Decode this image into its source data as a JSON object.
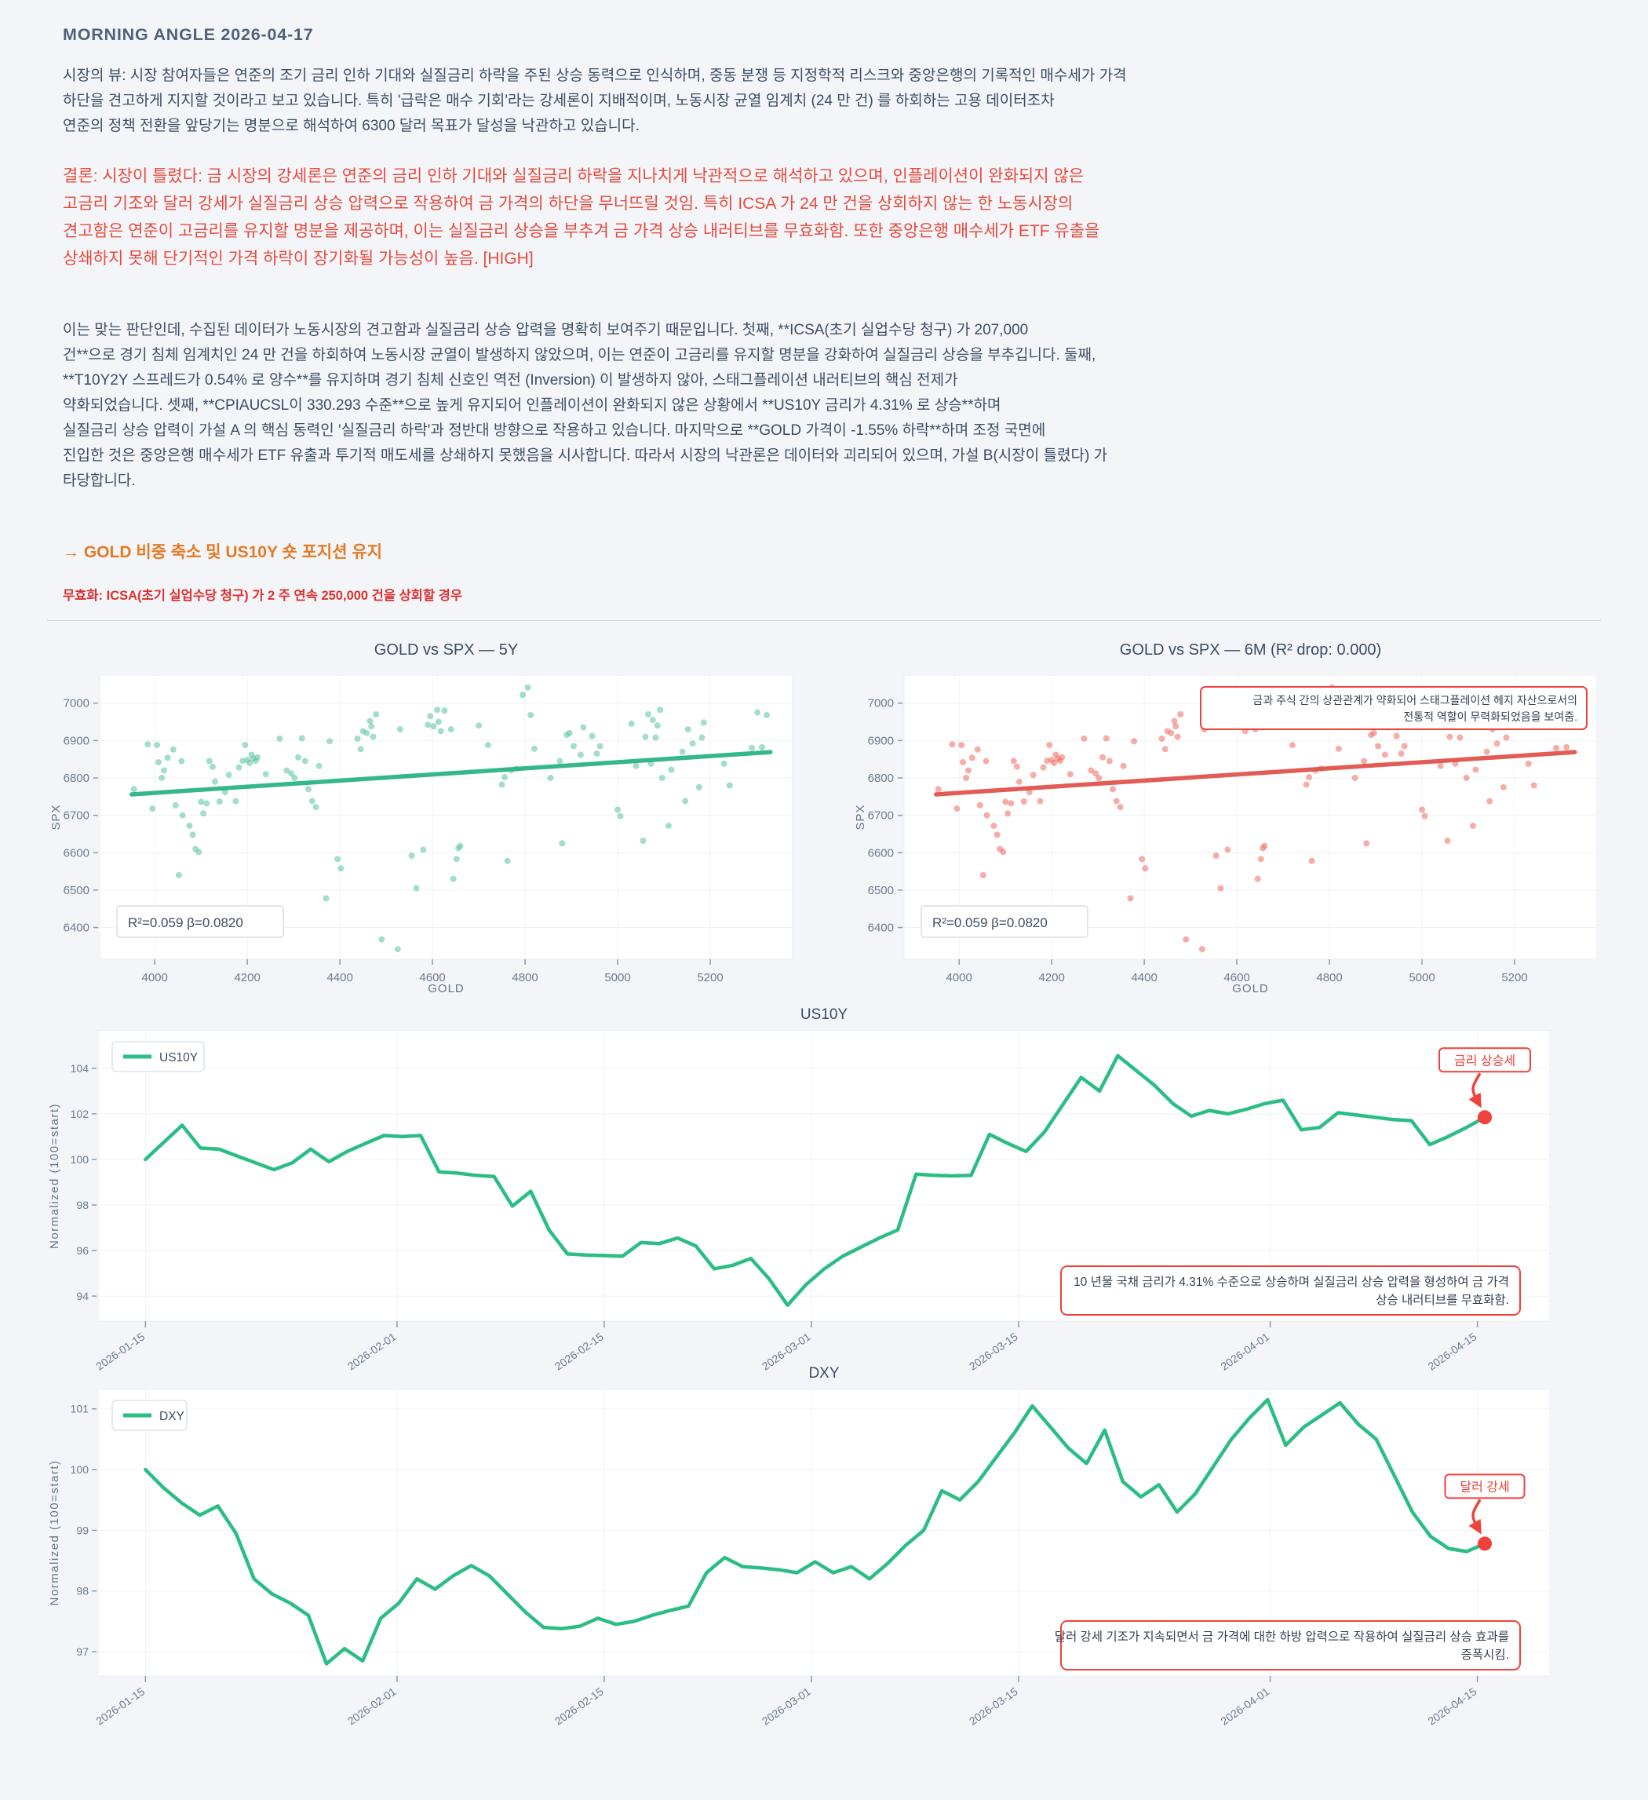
{
  "report": {
    "title": "MORNING ANGLE  2026-04-17",
    "market_view": "시장의 뷰: 시장 참여자들은 연준의 조기 금리 인하 기대와 실질금리 하락을 주된 상승 동력으로 인식하며, 중동 분쟁 등 지정학적 리스크와 중앙은행의 기록적인 매수세가 가격\n하단을 견고하게 지지할 것이라고 보고 있습니다. 특히 '급락은 매수 기회'라는 강세론이 지배적이며, 노동시장 균열 임계치 (24 만 건) 를 하회하는 고용 데이터조차\n연준의 정책 전환을 앞당기는 명분으로 해석하여 6300 달러 목표가 달성을 낙관하고 있습니다.",
    "conclusion": "결론: 시장이 틀렸다: 금 시장의 강세론은 연준의 금리 인하 기대와 실질금리 하락을 지나치게 낙관적으로 해석하고 있으며, 인플레이션이 완화되지 않은\n고금리 기조와 달러 강세가 실질금리 상승 압력으로 작용하여 금 가격의 하단을 무너뜨릴 것임. 특히 ICSA 가 24 만 건을 상회하지 않는 한 노동시장의\n견고함은 연준이 고금리를 유지할 명분을 제공하며, 이는 실질금리 상승을 부추겨 금 가격 상승 내러티브를 무효화함. 또한 중앙은행 매수세가 ETF 유출을\n상쇄하지 못해 단기적인 가격 하락이 장기화될 가능성이 높음.  [HIGH]",
    "analysis": "이는 맞는 판단인데, 수집된 데이터가 노동시장의 견고함과 실질금리 상승 압력을 명확히 보여주기 때문입니다. 첫째, **ICSA(초기 실업수당 청구) 가 207,000\n건**으로 경기 침체 임계치인 24 만 건을 하회하여 노동시장 균열이 발생하지 않았으며, 이는 연준이 고금리를 유지할 명분을 강화하여 실질금리 상승을 부추깁니다. 둘째,\n**T10Y2Y 스프레드가 0.54% 로 양수**를 유지하며 경기 침체 신호인 역전 (Inversion) 이 발생하지 않아, 스태그플레이션 내러티브의 핵심 전제가\n약화되었습니다. 셋째, **CPIAUCSL이 330.293 수준**으로 높게 유지되어 인플레이션이 완화되지 않은 상황에서 **US10Y 금리가 4.31% 로 상승**하며\n실질금리 상승 압력이 가설 A 의 핵심 동력인 '실질금리 하락'과 정반대 방향으로 작용하고 있습니다. 마지막으로 **GOLD 가격이 -1.55% 하락**하며 조정 국면에\n진입한 것은 중앙은행 매수세가 ETF 유출과 투기적 매도세를 상쇄하지 못했음을 시사합니다. 따라서 시장의 낙관론은 데이터와 괴리되어 있으며, 가설 B(시장이 틀렸다) 가\n타당합니다.",
    "action": "→ GOLD 비중 축소 및 US10Y 숏 포지션 유지",
    "invalidation": "무효화: ICSA(초기 실업수당 청구) 가 2 주 연속 250,000 건을 상회할 경우"
  },
  "colors": {
    "background": "#f3f5f8",
    "text": "#3e4d63",
    "conclusion_red": "#e8493c",
    "action_orange": "#e67a22",
    "invalidation_red": "#de3030",
    "green_line": "#2abd84",
    "green_point": "#57c29b",
    "red_line": "#e0524c",
    "red_point": "#ec6a60",
    "annotation_red": "#f0413a",
    "tick_text": "#6d7b8f"
  },
  "chart_data": [
    {
      "type": "scatter",
      "title": "GOLD vs SPX — 5Y",
      "xlabel": "GOLD",
      "ylabel": "SPX",
      "xlim": [
        3881,
        5378
      ],
      "ylim": [
        6315,
        7075
      ],
      "xticks": [
        4000,
        4200,
        4400,
        4600,
        4800,
        5000,
        5200
      ],
      "yticks": [
        6400,
        6500,
        6600,
        6700,
        6800,
        6900,
        7000
      ],
      "stats": "R²=0.059  β=0.0820",
      "line_color": "#2ab388",
      "point_color": "#57c29b",
      "trend": {
        "x": [
          3950,
          5330
        ],
        "y": [
          6756,
          6869
        ]
      },
      "points": [
        [
          3955,
          6770
        ],
        [
          3985,
          6890
        ],
        [
          3995,
          6718
        ],
        [
          4005,
          6888
        ],
        [
          4008,
          6842
        ],
        [
          4015,
          6800
        ],
        [
          4020,
          6820
        ],
        [
          4028,
          6854
        ],
        [
          4040,
          6876
        ],
        [
          4045,
          6727
        ],
        [
          4052,
          6540
        ],
        [
          4058,
          6845
        ],
        [
          4060,
          6700
        ],
        [
          4075,
          6672
        ],
        [
          4082,
          6648
        ],
        [
          4088,
          6610
        ],
        [
          4095,
          6602
        ],
        [
          4100,
          6736
        ],
        [
          4105,
          6705
        ],
        [
          4112,
          6732
        ],
        [
          4118,
          6845
        ],
        [
          4125,
          6830
        ],
        [
          4130,
          6790
        ],
        [
          4140,
          6737
        ],
        [
          4152,
          6762
        ],
        [
          4160,
          6808
        ],
        [
          4175,
          6738
        ],
        [
          4182,
          6828
        ],
        [
          4190,
          6846
        ],
        [
          4195,
          6888
        ],
        [
          4200,
          6848
        ],
        [
          4205,
          6840
        ],
        [
          4209,
          6862
        ],
        [
          4213,
          6852
        ],
        [
          4218,
          6846
        ],
        [
          4222,
          6855
        ],
        [
          4240,
          6810
        ],
        [
          4270,
          6905
        ],
        [
          4285,
          6820
        ],
        [
          4295,
          6812
        ],
        [
          4302,
          6800
        ],
        [
          4310,
          6855
        ],
        [
          4318,
          6906
        ],
        [
          4325,
          6845
        ],
        [
          4332,
          6770
        ],
        [
          4340,
          6738
        ],
        [
          4348,
          6722
        ],
        [
          4355,
          6832
        ],
        [
          4370,
          6478
        ],
        [
          4378,
          6898
        ],
        [
          4395,
          6583
        ],
        [
          4402,
          6558
        ],
        [
          4438,
          6905
        ],
        [
          4445,
          6877
        ],
        [
          4450,
          6925
        ],
        [
          4458,
          6920
        ],
        [
          4465,
          6952
        ],
        [
          4468,
          6938
        ],
        [
          4472,
          6910
        ],
        [
          4478,
          6970
        ],
        [
          4490,
          6368
        ],
        [
          4525,
          6342
        ],
        [
          4530,
          6930
        ],
        [
          4555,
          6592
        ],
        [
          4565,
          6505
        ],
        [
          4580,
          6608
        ],
        [
          4590,
          6942
        ],
        [
          4595,
          6965
        ],
        [
          4602,
          6938
        ],
        [
          4610,
          6982
        ],
        [
          4613,
          6950
        ],
        [
          4618,
          6925
        ],
        [
          4626,
          6980
        ],
        [
          4640,
          6930
        ],
        [
          4645,
          6530
        ],
        [
          4652,
          6583
        ],
        [
          4656,
          6612
        ],
        [
          4660,
          6618
        ],
        [
          4700,
          6940
        ],
        [
          4720,
          6888
        ],
        [
          4750,
          6782
        ],
        [
          4756,
          6802
        ],
        [
          4762,
          6578
        ],
        [
          4770,
          6820
        ],
        [
          4782,
          6825
        ],
        [
          4795,
          7022
        ],
        [
          4806,
          7042
        ],
        [
          4812,
          6968
        ],
        [
          4820,
          6878
        ],
        [
          4855,
          6800
        ],
        [
          4875,
          6845
        ],
        [
          4880,
          6625
        ],
        [
          4890,
          6915
        ],
        [
          4896,
          6920
        ],
        [
          4905,
          6885
        ],
        [
          4920,
          6862
        ],
        [
          4926,
          6935
        ],
        [
          4945,
          6912
        ],
        [
          4955,
          6865
        ],
        [
          4962,
          6885
        ],
        [
          5000,
          6715
        ],
        [
          5006,
          6698
        ],
        [
          5030,
          6945
        ],
        [
          5040,
          6832
        ],
        [
          5055,
          6632
        ],
        [
          5060,
          6910
        ],
        [
          5066,
          6970
        ],
        [
          5072,
          6838
        ],
        [
          5076,
          6955
        ],
        [
          5082,
          6908
        ],
        [
          5086,
          6940
        ],
        [
          5092,
          6982
        ],
        [
          5096,
          6800
        ],
        [
          5110,
          6672
        ],
        [
          5116,
          6822
        ],
        [
          5140,
          6870
        ],
        [
          5146,
          6738
        ],
        [
          5152,
          6930
        ],
        [
          5162,
          6892
        ],
        [
          5176,
          6775
        ],
        [
          5182,
          6908
        ],
        [
          5186,
          6948
        ],
        [
          5230,
          6838
        ],
        [
          5242,
          6780
        ],
        [
          5290,
          6880
        ],
        [
          5302,
          6975
        ],
        [
          5312,
          6882
        ],
        [
          5322,
          6968
        ]
      ]
    },
    {
      "type": "scatter",
      "title": "GOLD vs SPX — 6M (R² drop: 0.000)",
      "xlabel": "GOLD",
      "ylabel": "SPX",
      "xlim": [
        3881,
        5378
      ],
      "ylim": [
        6315,
        7075
      ],
      "xticks": [
        4000,
        4200,
        4400,
        4600,
        4800,
        5000,
        5200
      ],
      "yticks": [
        6400,
        6500,
        6600,
        6700,
        6800,
        6900,
        7000
      ],
      "stats": "R²=0.059  β=0.0820",
      "line_color": "#e0524c",
      "point_color": "#ec6a60",
      "trend": {
        "x": [
          3950,
          5330
        ],
        "y": [
          6756,
          6869
        ]
      },
      "points_from": 0,
      "note": [
        "금과 주식 간의 상관관계가 약화되어 스태그플레이션 헤지 자산으로서의",
        "전통적 역할이 무력화되었음을 보여줌."
      ]
    },
    {
      "type": "line",
      "title": "US10Y",
      "series_name": "US10Y",
      "ylabel": "Normalized (100=start)",
      "ylim": [
        92.9,
        105.65
      ],
      "yticks": [
        94,
        96,
        98,
        100,
        102,
        104
      ],
      "span_days": 90.5,
      "xticks": [
        {
          "d": 0,
          "label": "2026-01-15"
        },
        {
          "d": 17,
          "label": "2026-02-01"
        },
        {
          "d": 31,
          "label": "2026-02-15"
        },
        {
          "d": 45,
          "label": "2026-03-01"
        },
        {
          "d": 59,
          "label": "2026-03-15"
        },
        {
          "d": 76,
          "label": "2026-04-01"
        },
        {
          "d": 90,
          "label": "2026-04-15"
        }
      ],
      "color": "#2abd84",
      "values": [
        100.0,
        100.75,
        101.5,
        100.5,
        100.45,
        100.15,
        99.85,
        99.55,
        99.85,
        100.45,
        99.9,
        100.35,
        100.7,
        101.05,
        101.0,
        101.05,
        99.45,
        99.4,
        99.3,
        99.25,
        97.95,
        98.6,
        96.9,
        95.85,
        95.8,
        95.78,
        95.75,
        96.35,
        96.3,
        96.55,
        96.2,
        95.2,
        95.35,
        95.65,
        94.75,
        93.6,
        94.5,
        95.2,
        95.75,
        96.15,
        96.55,
        96.9,
        99.35,
        99.3,
        99.28,
        99.3,
        101.1,
        100.7,
        100.35,
        101.2,
        102.4,
        103.6,
        103.0,
        104.55,
        103.9,
        103.25,
        102.45,
        101.9,
        102.15,
        102.0,
        102.2,
        102.45,
        102.6,
        101.3,
        101.4,
        102.05,
        101.95,
        101.85,
        101.75,
        101.7,
        100.65,
        101.0,
        101.4,
        101.85
      ],
      "end_label": "금리 상승세",
      "note": [
        "10 년물 국채 금리가 4.31% 수준으로 상승하며 실질금리 상승 압력을 형성하여 금 가격",
        "상승 내러티브를 무효화함."
      ]
    },
    {
      "type": "line",
      "title": "DXY",
      "series_name": "DXY",
      "ylabel": "Normalized (100=start)",
      "ylim": [
        96.6,
        101.32
      ],
      "yticks": [
        97,
        98,
        99,
        100,
        101
      ],
      "span_days": 90.5,
      "xticks": [
        {
          "d": 0,
          "label": "2026-01-15"
        },
        {
          "d": 17,
          "label": "2026-02-01"
        },
        {
          "d": 31,
          "label": "2026-02-15"
        },
        {
          "d": 45,
          "label": "2026-03-01"
        },
        {
          "d": 59,
          "label": "2026-03-15"
        },
        {
          "d": 76,
          "label": "2026-04-01"
        },
        {
          "d": 90,
          "label": "2026-04-15"
        }
      ],
      "color": "#2abd84",
      "values": [
        100.0,
        99.7,
        99.45,
        99.25,
        99.4,
        98.95,
        98.2,
        97.95,
        97.8,
        97.6,
        96.8,
        97.05,
        96.85,
        97.55,
        97.8,
        98.2,
        98.03,
        98.25,
        98.42,
        98.25,
        97.95,
        97.65,
        97.4,
        97.38,
        97.42,
        97.55,
        97.45,
        97.5,
        97.6,
        97.68,
        97.75,
        98.3,
        98.55,
        98.4,
        98.38,
        98.35,
        98.3,
        98.48,
        98.3,
        98.4,
        98.2,
        98.45,
        98.75,
        99.0,
        99.65,
        99.5,
        99.8,
        100.2,
        100.6,
        101.05,
        100.7,
        100.35,
        100.1,
        100.65,
        99.8,
        99.55,
        99.75,
        99.3,
        99.6,
        100.05,
        100.5,
        100.85,
        101.15,
        100.4,
        100.7,
        100.9,
        101.1,
        100.75,
        100.5,
        99.9,
        99.3,
        98.9,
        98.7,
        98.65,
        98.78
      ],
      "end_label": "달러 강세",
      "note": [
        "달러 강세 기조가 지속되면서 금 가격에 대한 하방 압력으로 작용하여 실질금리 상승 효과를",
        "증폭시킴."
      ]
    }
  ]
}
